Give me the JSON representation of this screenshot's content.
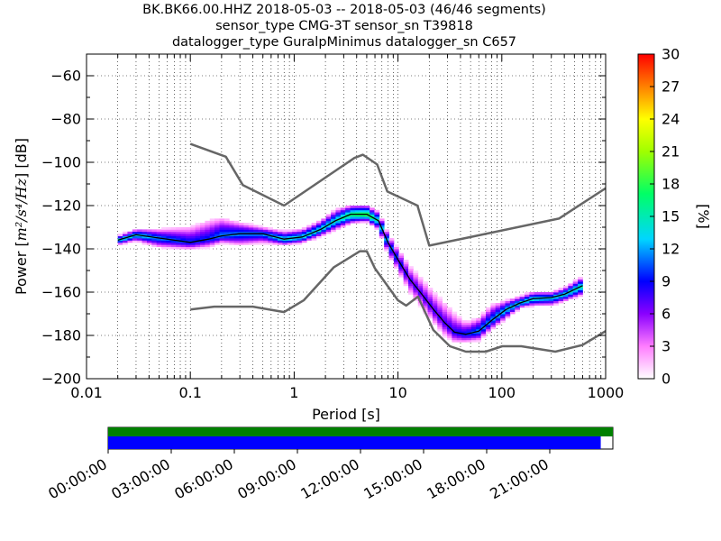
{
  "title": {
    "line1": "BK.BK66.00.HHZ   2018-05-03 -- 2018-05-03  (46/46 segments)",
    "line2": "sensor_type CMG-3T sensor_sn T39818",
    "line3": "datalogger_type GuralpMinimus datalogger_sn C657"
  },
  "chart_data": {
    "type": "heatmap",
    "xlabel": "Period [s]",
    "ylabel_prefix": "Power [",
    "ylabel_units": "m²/s⁴/Hz",
    "ylabel_suffix": "] [dB]",
    "x_scale": "log",
    "xlim": [
      0.01,
      1000
    ],
    "ylim": [
      -200,
      -50
    ],
    "x_ticks": [
      0.01,
      0.1,
      1,
      10,
      100,
      1000
    ],
    "x_tick_labels": [
      "0.01",
      "0.1",
      "1",
      "10",
      "100",
      "1000"
    ],
    "y_ticks": [
      -200,
      -180,
      -160,
      -140,
      -120,
      -100,
      -80,
      -60
    ],
    "y_tick_labels": [
      "−200",
      "−180",
      "−160",
      "−140",
      "−120",
      "−100",
      "−80",
      "−60"
    ],
    "grid": "dotted",
    "colorbar": {
      "label": "[%]",
      "range": [
        0,
        30
      ],
      "ticks": [
        "0",
        "3",
        "6",
        "9",
        "12",
        "15",
        "18",
        "21",
        "24",
        "27",
        "30"
      ]
    },
    "nhnm": {
      "x": [
        0.1,
        0.22,
        0.32,
        0.8,
        3.8,
        4.6,
        6.3,
        7.9,
        15.4,
        20,
        354.8,
        1000
      ],
      "y": [
        -91.5,
        -97.4,
        -110.5,
        -120,
        -98,
        -96.5,
        -101,
        -113.5,
        -120,
        -138.5,
        -126,
        -112
      ]
    },
    "nlnm": {
      "x": [
        0.1,
        0.17,
        0.4,
        0.8,
        1.24,
        2.4,
        4.3,
        5,
        6,
        10,
        12,
        15.6,
        21.9,
        31.6,
        45,
        70,
        101,
        154,
        328,
        600,
        1000
      ],
      "y": [
        -168,
        -166.7,
        -166.7,
        -169.2,
        -163.7,
        -148.6,
        -141.1,
        -141.1,
        -149,
        -163.8,
        -166.2,
        -162.1,
        -177.5,
        -185,
        -187.5,
        -187.5,
        -185,
        -185,
        -187.5,
        -184.4,
        -178
      ]
    },
    "mean": {
      "x": [
        0.02,
        0.03,
        0.05,
        0.1,
        0.15,
        0.2,
        0.3,
        0.5,
        0.8,
        1.2,
        1.8,
        2.5,
        3.5,
        5,
        6.5,
        8,
        10,
        13,
        17,
        22,
        28,
        35,
        45,
        60,
        80,
        110,
        150,
        200,
        300,
        400,
        600
      ],
      "y": [
        -136,
        -133.5,
        -135,
        -137,
        -135.5,
        -134,
        -133,
        -133,
        -135.5,
        -134.5,
        -131,
        -127,
        -124,
        -124,
        -127,
        -137,
        -145,
        -154,
        -161,
        -168,
        -174,
        -178.5,
        -179.5,
        -178,
        -173,
        -168,
        -165,
        -163,
        -162.5,
        -161,
        -157
      ]
    },
    "pdf_spread": [
      {
        "x": 0.02,
        "lo": -138,
        "hi": -134,
        "pct": 15
      },
      {
        "x": 0.03,
        "lo": -136,
        "hi": -131,
        "pct": 15
      },
      {
        "x": 0.05,
        "lo": -139,
        "hi": -131,
        "pct": 12
      },
      {
        "x": 0.1,
        "lo": -140,
        "hi": -130,
        "pct": 10
      },
      {
        "x": 0.15,
        "lo": -139,
        "hi": -127,
        "pct": 10
      },
      {
        "x": 0.2,
        "lo": -137,
        "hi": -126,
        "pct": 12
      },
      {
        "x": 0.3,
        "lo": -138,
        "hi": -128,
        "pct": 12
      },
      {
        "x": 0.5,
        "lo": -137,
        "hi": -130,
        "pct": 12
      },
      {
        "x": 0.8,
        "lo": -138,
        "hi": -132,
        "pct": 15
      },
      {
        "x": 1.2,
        "lo": -137,
        "hi": -131,
        "pct": 15
      },
      {
        "x": 1.8,
        "lo": -134,
        "hi": -127,
        "pct": 15
      },
      {
        "x": 2.5,
        "lo": -131,
        "hi": -122,
        "pct": 15
      },
      {
        "x": 3.5,
        "lo": -128,
        "hi": -120,
        "pct": 18
      },
      {
        "x": 5,
        "lo": -127,
        "hi": -120,
        "pct": 20
      },
      {
        "x": 6.5,
        "lo": -131,
        "hi": -123,
        "pct": 15
      },
      {
        "x": 8,
        "lo": -142,
        "hi": -133,
        "pct": 12
      },
      {
        "x": 10,
        "lo": -150,
        "hi": -140,
        "pct": 10
      },
      {
        "x": 13,
        "lo": -160,
        "hi": -148,
        "pct": 8
      },
      {
        "x": 17,
        "lo": -167,
        "hi": -154,
        "pct": 8
      },
      {
        "x": 22,
        "lo": -174,
        "hi": -160,
        "pct": 8
      },
      {
        "x": 28,
        "lo": -180,
        "hi": -165,
        "pct": 8
      },
      {
        "x": 35,
        "lo": -183,
        "hi": -170,
        "pct": 9
      },
      {
        "x": 45,
        "lo": -183,
        "hi": -174,
        "pct": 10
      },
      {
        "x": 60,
        "lo": -182,
        "hi": -172,
        "pct": 12
      },
      {
        "x": 80,
        "lo": -177,
        "hi": -166,
        "pct": 12
      },
      {
        "x": 110,
        "lo": -172,
        "hi": -164,
        "pct": 14
      },
      {
        "x": 150,
        "lo": -167,
        "hi": -162,
        "pct": 15
      },
      {
        "x": 200,
        "lo": -166,
        "hi": -160,
        "pct": 15
      },
      {
        "x": 300,
        "lo": -166,
        "hi": -160,
        "pct": 14
      },
      {
        "x": 400,
        "lo": -164,
        "hi": -158,
        "pct": 15
      },
      {
        "x": 600,
        "lo": -161,
        "hi": -153,
        "pct": 16
      }
    ],
    "timeline": {
      "ticks": [
        "00:00:00",
        "03:00:00",
        "06:00:00",
        "09:00:00",
        "12:00:00",
        "15:00:00",
        "18:00:00",
        "21:00:00"
      ],
      "range_hours": [
        0,
        24
      ],
      "data_available_fraction": 1.0,
      "psd_coverage_fraction": 0.976,
      "data_color": "#008000",
      "psd_color": "#0000ff"
    }
  },
  "colors": {
    "noise_model": "#666666",
    "mean_line": "#000000",
    "grid": "#000000"
  }
}
